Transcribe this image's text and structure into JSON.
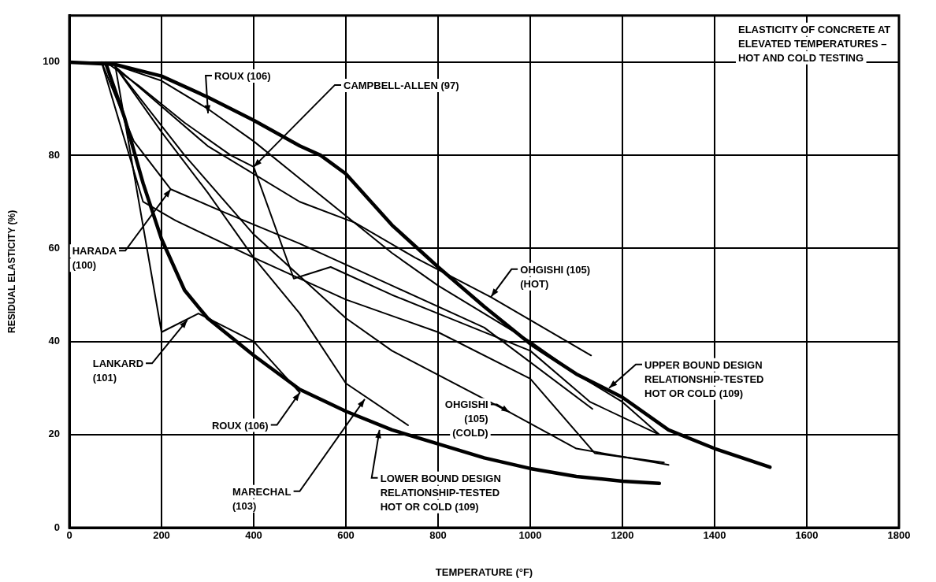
{
  "chart_data": {
    "type": "line",
    "title": "ELASTICITY OF CONCRETE AT ELEVATED TEMPERATURES – HOT AND COLD TESTING",
    "xlabel": "TEMPERATURE (°F)",
    "ylabel": "RESIDUAL ELASTICITY (%)",
    "xlim": [
      0,
      1800
    ],
    "xticks": [
      0,
      200,
      400,
      600,
      800,
      1000,
      1200,
      1400,
      1600,
      1800
    ],
    "ylim": [
      0,
      110
    ],
    "yticks": [
      0,
      20,
      40,
      60,
      80,
      100
    ],
    "grid": true,
    "legend": false,
    "marker": "none",
    "line_style": "solid",
    "series": [
      {
        "color": "#000000",
        "x": [
          0,
          100,
          200,
          300,
          400,
          500,
          545,
          600,
          700,
          800,
          900,
          1000,
          1100,
          1200,
          1300,
          1400,
          1520
        ],
        "values": [
          100,
          99.5,
          97,
          92.5,
          87.5,
          82,
          80,
          76,
          65,
          56,
          47.5,
          39.5,
          33,
          28,
          21,
          17,
          13
        ]
      },
      {
        "color": "#000000",
        "x": [
          80,
          120,
          160,
          200,
          250,
          300,
          400,
          500,
          600,
          700,
          800,
          900,
          1000,
          1100,
          1200,
          1280
        ],
        "values": [
          99.5,
          88,
          74,
          62,
          51,
          45,
          37,
          29.7,
          25,
          21,
          18,
          15,
          12.7,
          11,
          10,
          9.5
        ]
      },
      {
        "color": "#000000",
        "x": [
          80,
          200,
          300,
          400,
          500,
          600,
          700,
          800,
          900,
          1000,
          1100,
          1200,
          1280
        ],
        "values": [
          100,
          96,
          90,
          83,
          75,
          67,
          59,
          52,
          46,
          40,
          33,
          27,
          20
        ]
      },
      {
        "color": "#000000",
        "x": [
          80,
          150,
          250,
          350,
          400,
          487,
          567,
          700,
          800,
          1000,
          1130,
          1280
        ],
        "values": [
          100,
          95,
          87,
          80,
          77.5,
          53.5,
          56,
          50,
          46,
          38,
          27,
          20
        ]
      },
      {
        "color": "#000000",
        "x": [
          100,
          300,
          500,
          620,
          750,
          915,
          1132
        ],
        "values": [
          99,
          82,
          70,
          65.5,
          58,
          49.5,
          37
        ]
      },
      {
        "color": "#000000",
        "x": [
          70,
          140,
          220,
          330,
          500,
          700,
          900,
          1135
        ],
        "values": [
          100,
          83,
          72.7,
          68,
          61,
          52,
          43,
          25.5
        ]
      },
      {
        "color": "#000000",
        "x": [
          70,
          160,
          230,
          400,
          600,
          800,
          1000,
          1140,
          1290
        ],
        "values": [
          100,
          70,
          66,
          58,
          49,
          42,
          32,
          16,
          14
        ]
      },
      {
        "color": "#000000",
        "x": [
          100,
          200,
          280,
          400,
          500
        ],
        "values": [
          99,
          42,
          46,
          40,
          29
        ]
      },
      {
        "color": "#000000",
        "x": [
          100,
          250,
          400,
          600,
          700,
          955,
          1100,
          1300
        ],
        "values": [
          99,
          80,
          63,
          45,
          38,
          24.8,
          17,
          13.5
        ]
      },
      {
        "color": "#000000",
        "x": [
          100,
          200,
          300,
          400,
          500,
          600,
          735
        ],
        "values": [
          99,
          85,
          72,
          58,
          46,
          31,
          22
        ]
      }
    ],
    "annotations": [
      {
        "text": "ROUX (106)",
        "x": 301,
        "y": 89
      },
      {
        "text": "CAMPBELL-ALLEN (97)",
        "x": 400,
        "y": 77.5
      },
      {
        "text": "HARADA\n(100)",
        "x": 220,
        "y": 72.7
      },
      {
        "text": "LANKARD\n(101)",
        "x": 256,
        "y": 44.6
      },
      {
        "text": "ROUX (106)",
        "x": 500,
        "y": 29
      },
      {
        "text": "MARECHAL\n(103)",
        "x": 641,
        "y": 27.6
      },
      {
        "text": "LOWER BOUND DESIGN\nRELATIONSHIP-TESTED\nHOT OR COLD (109)",
        "x": 673,
        "y": 21
      },
      {
        "text": "OHGISHI\n(105)\n(COLD)",
        "x": 955,
        "y": 24.8
      },
      {
        "text": "OHGISHI (105)\n(HOT)",
        "x": 915,
        "y": 49.6
      },
      {
        "text": "UPPER BOUND DESIGN\nRELATIONSHIP-TESTED\nHOT OR COLD (109)",
        "x": 1171,
        "y": 30
      }
    ]
  }
}
